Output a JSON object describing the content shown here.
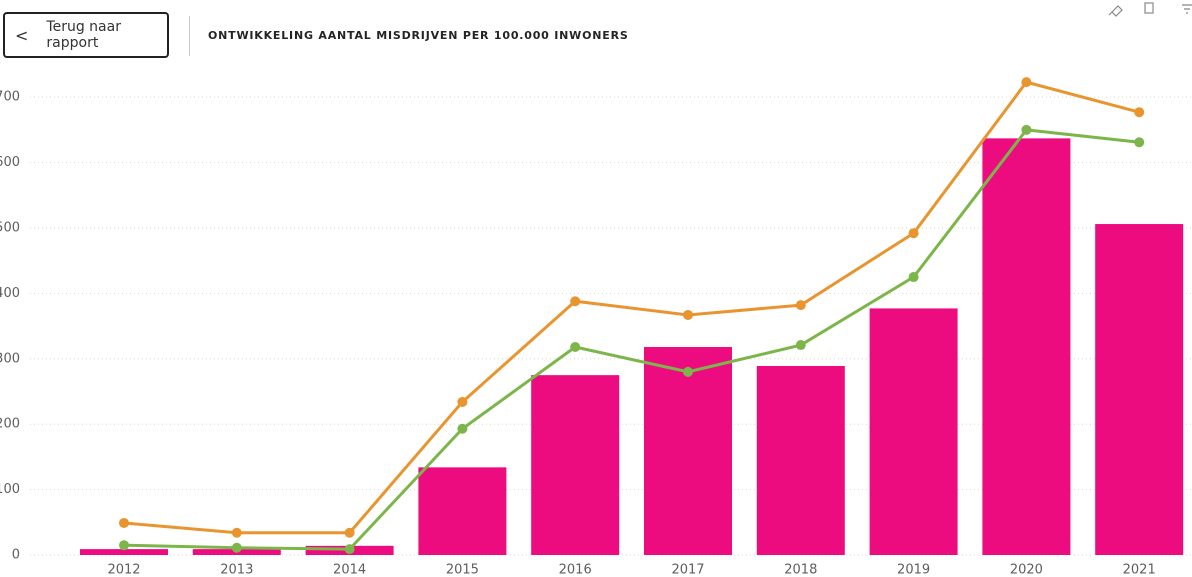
{
  "header": {
    "back_button": "Terug naar rapport"
  },
  "chart_data": {
    "type": "combo",
    "title": "ONTWIKKELING AANTAL MISDRIJVEN PER 100.000 INWONERS",
    "categories": [
      "2012",
      "2013",
      "2014",
      "2015",
      "2016",
      "2017",
      "2018",
      "2019",
      "2020",
      "2021"
    ],
    "series": [
      {
        "type": "bar",
        "color": "#ec0c80",
        "values": [
          9,
          9,
          14,
          134,
          275,
          318,
          289,
          377,
          637,
          506
        ]
      },
      {
        "type": "line",
        "color": "#e8952f",
        "values": [
          49,
          34,
          34,
          234,
          388,
          367,
          382,
          492,
          723,
          677
        ]
      },
      {
        "type": "line",
        "color": "#7cb64a",
        "values": [
          15,
          11,
          9,
          193,
          318,
          280,
          321,
          425,
          650,
          631
        ]
      }
    ],
    "ylim": [
      0,
      740
    ],
    "yticks": [
      0,
      100,
      200,
      300,
      400,
      500,
      600,
      700
    ],
    "grid": true
  }
}
